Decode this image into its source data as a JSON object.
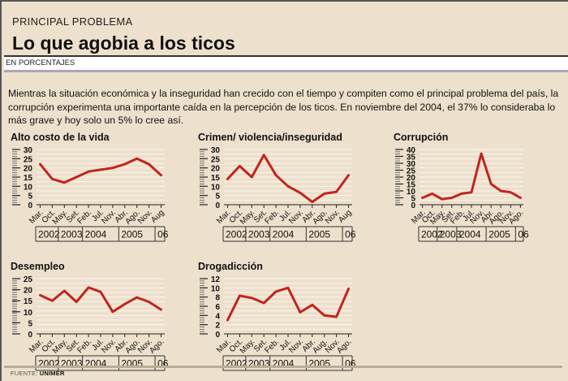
{
  "header": {
    "kicker": "PRINCIPAL PROBLEMA",
    "title": "Lo que agobia a los ticos",
    "subhead": "EN PORCENTAJES"
  },
  "intro": "Mientras la situación económica y la inseguridad han crecido con el tiempo y compiten como el principal problema del país, la corrupción experimenta una importante caída en la percepción de los ticos. En noviembre del 2004, el 37% lo consideraba lo más grave y hoy solo un 5% lo cree así.",
  "source": {
    "label": "FUENTE:",
    "name": "UNIMER"
  },
  "colors": {
    "line": "#c0251f",
    "background": "#ede0cc",
    "gridline": "#ffffff"
  },
  "chart_data": [
    {
      "type": "line",
      "title": "Alto costo de la vida",
      "categories": [
        "Mar.",
        "Oct.",
        "May.",
        "Set.",
        "Feb.",
        "Jul.",
        "Nov.",
        "Abr.",
        "Ago.",
        "Nov.",
        "Aug"
      ],
      "values": [
        22,
        14,
        12,
        15,
        18,
        19,
        20,
        22,
        25,
        22,
        16
      ],
      "yticks": [
        0,
        5,
        10,
        15,
        20,
        25,
        30
      ],
      "ylim": [
        0,
        30
      ],
      "years": [
        {
          "label": "2002",
          "span": [
            0,
            1
          ]
        },
        {
          "label": "2003",
          "span": [
            2,
            3
          ]
        },
        {
          "label": "2004",
          "span": [
            4,
            6
          ]
        },
        {
          "label": "2005",
          "span": [
            7,
            9
          ]
        },
        {
          "label": "06",
          "span": [
            10,
            10
          ]
        }
      ],
      "xlabel": "",
      "ylabel": "",
      "grid": true
    },
    {
      "type": "line",
      "title": "Crimen/ violencia/inseguridad",
      "categories": [
        "Mar.",
        "Oct.",
        "May.",
        "Set.",
        "Feb.",
        "Jul.",
        "Nov.",
        "Abr.",
        "Ago.",
        "Nov.",
        "Aug"
      ],
      "values": [
        14,
        21,
        15,
        27,
        16,
        10,
        6.5,
        1.5,
        6,
        7,
        16
      ],
      "yticks": [
        0,
        5,
        10,
        15,
        20,
        25,
        30
      ],
      "ylim": [
        0,
        30
      ],
      "years": [
        {
          "label": "2002",
          "span": [
            0,
            1
          ]
        },
        {
          "label": "2003",
          "span": [
            2,
            3
          ]
        },
        {
          "label": "2004",
          "span": [
            4,
            6
          ]
        },
        {
          "label": "2005",
          "span": [
            7,
            9
          ]
        },
        {
          "label": "06",
          "span": [
            10,
            10
          ]
        }
      ],
      "xlabel": "",
      "ylabel": "",
      "grid": true
    },
    {
      "type": "line",
      "title": "Corrupción",
      "categories": [
        "Mar.",
        "Oct.",
        "May.",
        "Set.",
        "Feb.",
        "Jul.",
        "Nov.",
        "Abr.",
        "Ago.",
        "Nov.",
        "Ago."
      ],
      "values": [
        5,
        8,
        4,
        5,
        8,
        9,
        37,
        15,
        10,
        9,
        5
      ],
      "yticks": [
        0,
        5,
        10,
        15,
        20,
        25,
        30,
        35,
        40
      ],
      "ylim": [
        0,
        40
      ],
      "years": [
        {
          "label": "2002",
          "span": [
            0,
            1
          ]
        },
        {
          "label": "2003",
          "span": [
            2,
            3
          ]
        },
        {
          "label": "2004",
          "span": [
            4,
            6
          ]
        },
        {
          "label": "2005",
          "span": [
            7,
            9
          ]
        },
        {
          "label": "06",
          "span": [
            10,
            10
          ]
        }
      ],
      "xlabel": "",
      "ylabel": "",
      "grid": true
    },
    {
      "type": "line",
      "title": "Desempleo",
      "categories": [
        "Mar.",
        "Oct.",
        "May.",
        "Set.",
        "Feb.",
        "Jul.",
        "Nov.",
        "Abr.",
        "Ago.",
        "Nov.",
        "Ago."
      ],
      "values": [
        17.5,
        15,
        19.5,
        14.5,
        21,
        19,
        10,
        13.5,
        16.5,
        14.5,
        11
      ],
      "yticks": [
        0,
        5,
        10,
        15,
        20,
        25
      ],
      "ylim": [
        0,
        25
      ],
      "years": [
        {
          "label": "2002",
          "span": [
            0,
            1
          ]
        },
        {
          "label": "2003",
          "span": [
            2,
            3
          ]
        },
        {
          "label": "2004",
          "span": [
            4,
            6
          ]
        },
        {
          "label": "2005",
          "span": [
            7,
            9
          ]
        },
        {
          "label": "06",
          "span": [
            10,
            10
          ]
        }
      ],
      "xlabel": "",
      "ylabel": "",
      "grid": true
    },
    {
      "type": "line",
      "title": "Drogadicción",
      "categories": [
        "Mar.",
        "Oct.",
        "May.",
        "Set.",
        "Feb.",
        "Jul.",
        "Nov.",
        "Abr.",
        "Aug.",
        "Nov.",
        "Ago."
      ],
      "values": [
        3,
        8.3,
        7.8,
        6.7,
        9.2,
        10,
        4.7,
        6.3,
        4,
        3.7,
        9.8
      ],
      "yticks": [
        0,
        2,
        4,
        6,
        8,
        10,
        12
      ],
      "ylim": [
        0,
        12
      ],
      "years": [
        {
          "label": "2002",
          "span": [
            0,
            1
          ]
        },
        {
          "label": "2003",
          "span": [
            2,
            3
          ]
        },
        {
          "label": "2004",
          "span": [
            4,
            6
          ]
        },
        {
          "label": "2005",
          "span": [
            7,
            9
          ]
        },
        {
          "label": "06",
          "span": [
            10,
            10
          ]
        }
      ],
      "xlabel": "",
      "ylabel": "",
      "grid": true
    }
  ]
}
